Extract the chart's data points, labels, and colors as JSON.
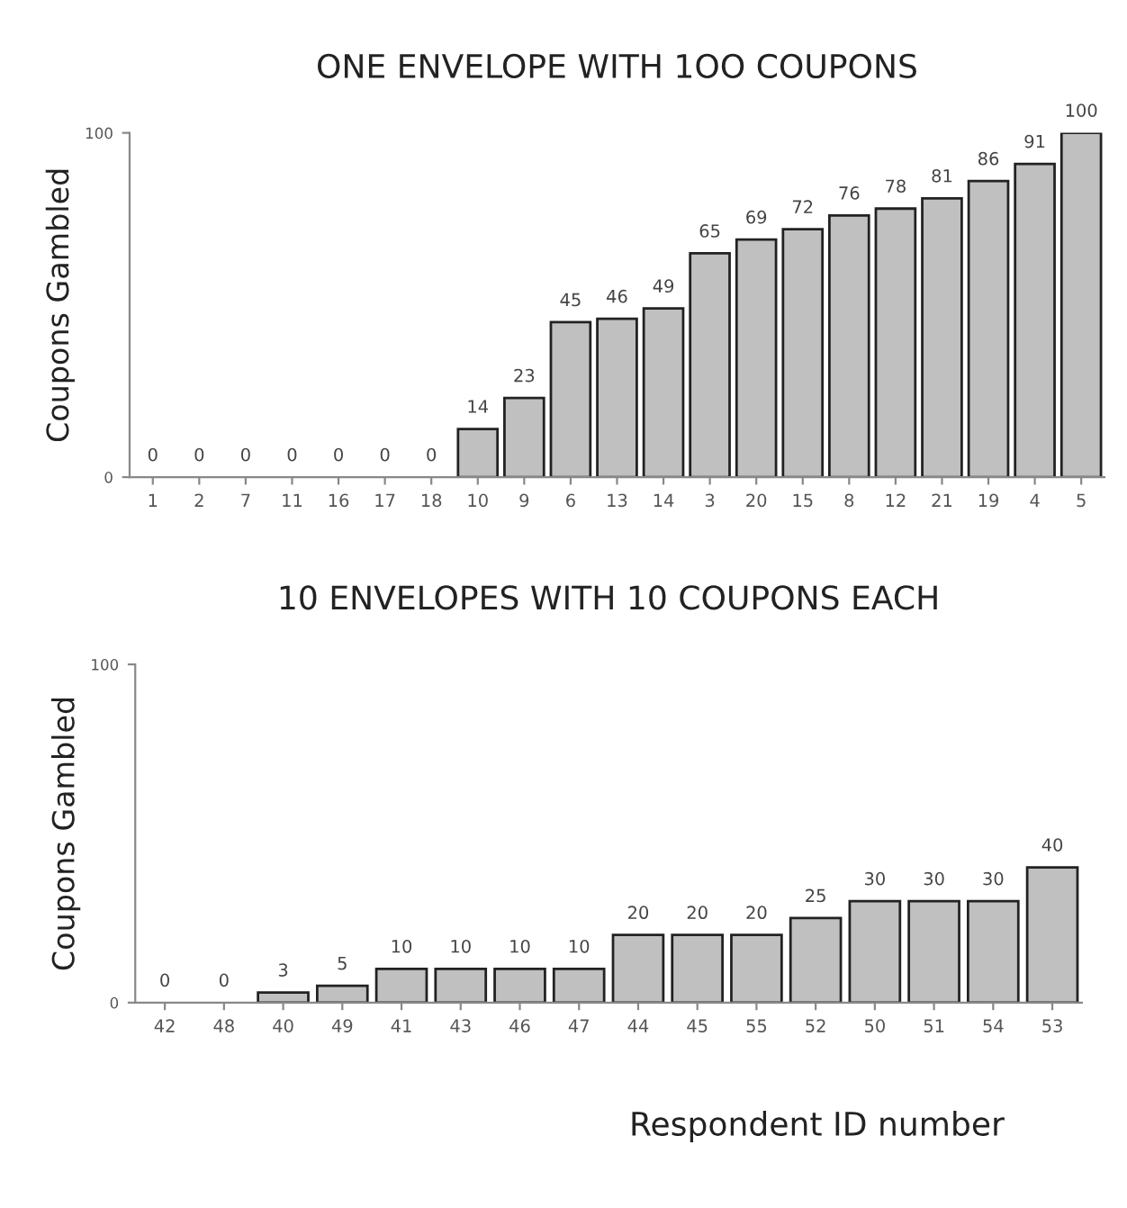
{
  "chart_data": [
    {
      "type": "bar",
      "title": "ONE ENVELOPE WITH 1OO COUPONS",
      "ylabel": "Coupons Gambled",
      "categories": [
        "1",
        "2",
        "7",
        "11",
        "16",
        "17",
        "18",
        "10",
        "9",
        "6",
        "13",
        "14",
        "3",
        "20",
        "15",
        "8",
        "12",
        "21",
        "19",
        "4",
        "5"
      ],
      "values": [
        0,
        0,
        0,
        0,
        0,
        0,
        0,
        14,
        23,
        45,
        46,
        49,
        65,
        69,
        72,
        76,
        78,
        81,
        86,
        91,
        100
      ],
      "color": "#c0c0c0",
      "ylim": [
        0,
        100
      ],
      "yticks": [
        0,
        100
      ],
      "data_labels": true,
      "grid": false,
      "legend": false
    },
    {
      "type": "bar",
      "title": "10 ENVELOPES WITH 10 COUPONS EACH",
      "ylabel": "Coupons Gambled",
      "xlabel": "Respondent ID number",
      "categories": [
        "42",
        "48",
        "40",
        "49",
        "41",
        "43",
        "46",
        "47",
        "44",
        "45",
        "55",
        "52",
        "50",
        "51",
        "54",
        "53"
      ],
      "values": [
        0,
        0,
        3,
        5,
        10,
        10,
        10,
        10,
        20,
        20,
        20,
        25,
        30,
        30,
        30,
        40
      ],
      "color": "#c0c0c0",
      "ylim": [
        0,
        100
      ],
      "yticks": [
        0,
        100
      ],
      "data_labels": true,
      "grid": false,
      "legend": false
    }
  ]
}
